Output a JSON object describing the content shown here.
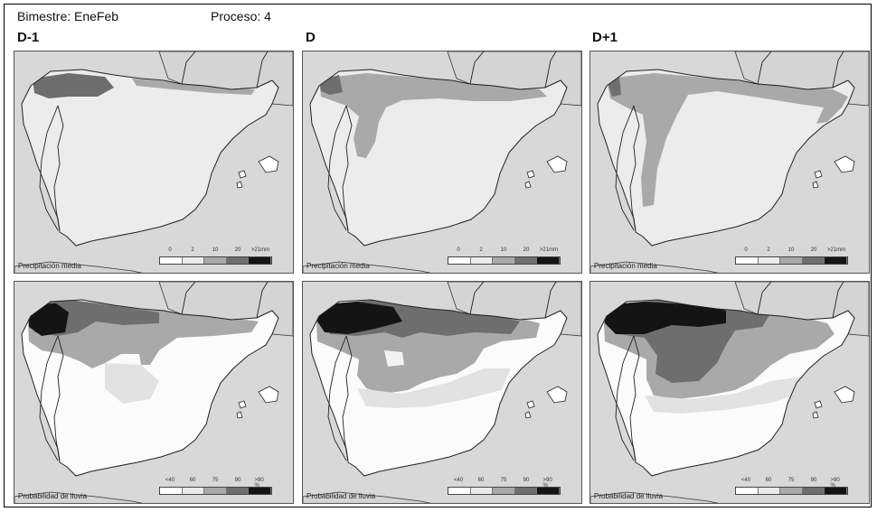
{
  "header": {
    "bimestre": "Bimestre: EneFeb",
    "proceso": "Proceso: 4"
  },
  "columns": [
    "D-1",
    "D",
    "D+1"
  ],
  "rows": [
    {
      "label": "Precipitación media",
      "legend_ticks": [
        "0",
        "2",
        "10",
        "20",
        ">21mm"
      ],
      "legend_colors": [
        "#ffffff",
        "#ebebeb",
        "#a9a9a9",
        "#6e6e6e",
        "#141414"
      ]
    },
    {
      "label": "Probabilidad de lluvia",
      "legend_ticks": [
        "<40",
        "60",
        "75",
        "90",
        ">90 %"
      ],
      "legend_colors": [
        "#ffffff",
        "#ebebeb",
        "#a9a9a9",
        "#6e6e6e",
        "#141414"
      ]
    }
  ],
  "colors": {
    "sea": "#d8d8d8",
    "land_outside": "#d4d4d4",
    "iberia_low": "#ececec",
    "probability_low": "#fbfbfb",
    "light": "#e2e2e2",
    "mid": "#a9a9a9",
    "dark": "#6e6e6e",
    "darkest": "#141414"
  }
}
